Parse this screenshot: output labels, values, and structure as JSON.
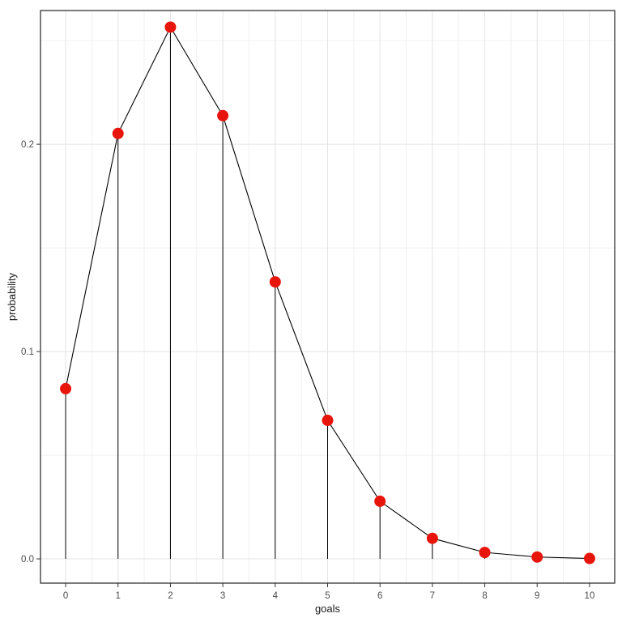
{
  "chart_data": {
    "type": "line",
    "style": "lollipop-pmf",
    "title": "",
    "xlabel": "goals",
    "ylabel": "probability",
    "x": [
      0,
      1,
      2,
      3,
      4,
      5,
      6,
      7,
      8,
      9,
      10
    ],
    "series": [
      {
        "name": "probability",
        "values": [
          0.0821,
          0.2052,
          0.2565,
          0.2138,
          0.1336,
          0.0668,
          0.0278,
          0.0099,
          0.0031,
          0.0009,
          0.0002
        ]
      }
    ],
    "x_tick_values": [
      0,
      1,
      2,
      3,
      4,
      5,
      6,
      7,
      8,
      9,
      10
    ],
    "x_tick_labels": [
      "0",
      "1",
      "2",
      "3",
      "4",
      "5",
      "6",
      "7",
      "8",
      "9",
      "10"
    ],
    "y_tick_values": [
      0.0,
      0.1,
      0.2
    ],
    "y_tick_labels": [
      "0.0",
      "0.1",
      "0.2"
    ],
    "x_minor_ticks": [
      0.5,
      1.5,
      2.5,
      3.5,
      4.5,
      5.5,
      6.5,
      7.5,
      8.5,
      9.5
    ],
    "y_minor_ticks": [
      0.05,
      0.15,
      0.25
    ],
    "xlim": [
      -0.48,
      10.48
    ],
    "ylim": [
      -0.0117,
      0.2645
    ],
    "grid": true,
    "legend_position": "none",
    "marker": {
      "shape": "circle",
      "radius": 7
    },
    "colors": {
      "point": "#e8150c",
      "line": "#000000",
      "stem": "#000000",
      "grid_major": "#e4e4e4",
      "grid_minor": "#f1f1f1",
      "panel_border": "#333333",
      "panel_background": "#ffffff",
      "tick_mark": "#333333",
      "tick_text": "#4d4d4d",
      "axis_title_text": "#1a1a1a"
    }
  }
}
